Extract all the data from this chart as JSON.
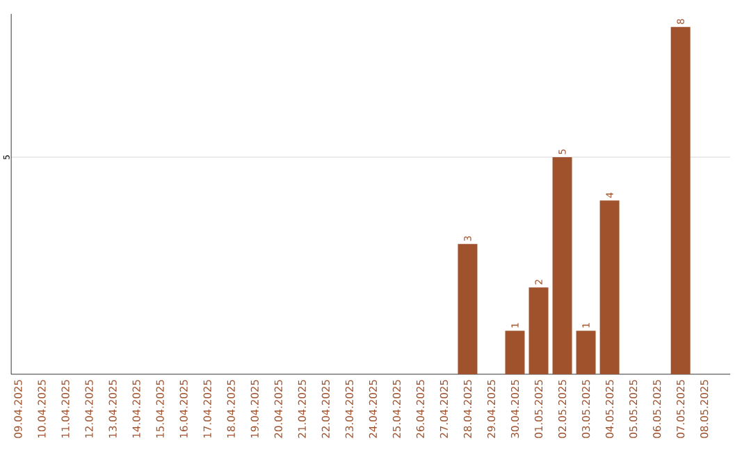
{
  "chart_data": {
    "type": "bar",
    "categories": [
      "09.04.2025",
      "10.04.2025",
      "11.04.2025",
      "12.04.2025",
      "13.04.2025",
      "14.04.2025",
      "15.04.2025",
      "16.04.2025",
      "17.04.2025",
      "18.04.2025",
      "19.04.2025",
      "20.04.2025",
      "21.04.2025",
      "22.04.2025",
      "23.04.2025",
      "24.04.2025",
      "25.04.2025",
      "26.04.2025",
      "27.04.2025",
      "28.04.2025",
      "29.04.2025",
      "30.04.2025",
      "01.05.2025",
      "02.05.2025",
      "03.05.2025",
      "04.05.2025",
      "05.05.2025",
      "06.05.2025",
      "07.05.2025",
      "08.05.2025"
    ],
    "values": [
      null,
      null,
      null,
      null,
      null,
      null,
      null,
      null,
      null,
      null,
      null,
      null,
      null,
      null,
      null,
      null,
      null,
      null,
      null,
      3,
      null,
      1,
      2,
      5,
      1,
      4,
      null,
      null,
      8,
      null
    ],
    "color": "#a0522d",
    "ylim": [
      0,
      8.3
    ],
    "yticks": [
      5
    ],
    "grid": "y",
    "data_labels": true
  }
}
